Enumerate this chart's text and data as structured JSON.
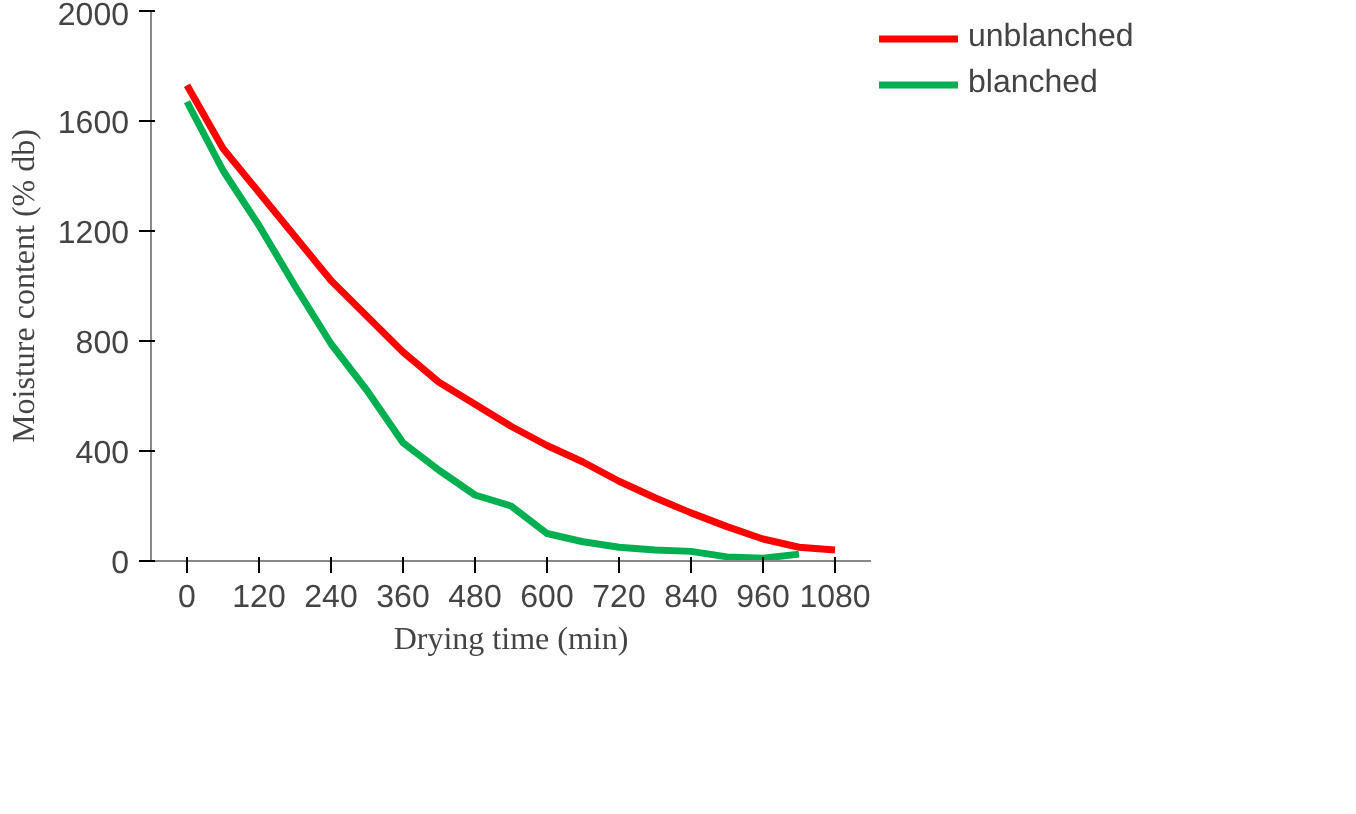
{
  "chart_data": {
    "type": "line",
    "xlabel": "Drying time (min)",
    "ylabel": "Moisture content (% db)",
    "xlim": [
      -60,
      1140
    ],
    "xticks": [
      0,
      120,
      240,
      360,
      480,
      600,
      720,
      840,
      960,
      1080
    ],
    "ylim": [
      0,
      2000
    ],
    "yticks": [
      0,
      400,
      800,
      1200,
      1600,
      2000
    ],
    "grid": false,
    "legend": "top right",
    "marker": "none",
    "line_style": "solid",
    "series": [
      {
        "name": "unblanched",
        "color": "#ff0000",
        "x": [
          0,
          60,
          120,
          180,
          240,
          300,
          360,
          420,
          480,
          540,
          600,
          660,
          720,
          780,
          840,
          900,
          960,
          1020,
          1080
        ],
        "values": [
          1730,
          1500,
          1340,
          1180,
          1020,
          890,
          760,
          650,
          570,
          490,
          420,
          360,
          290,
          230,
          175,
          125,
          80,
          50,
          40
        ]
      },
      {
        "name": "blanched",
        "color": "#00b050",
        "x": [
          0,
          60,
          120,
          180,
          240,
          300,
          360,
          420,
          480,
          540,
          600,
          660,
          720,
          780,
          840,
          900,
          960,
          1020
        ],
        "values": [
          1670,
          1420,
          1220,
          1000,
          790,
          620,
          430,
          330,
          240,
          200,
          100,
          70,
          50,
          40,
          35,
          15,
          10,
          25
        ]
      }
    ]
  }
}
